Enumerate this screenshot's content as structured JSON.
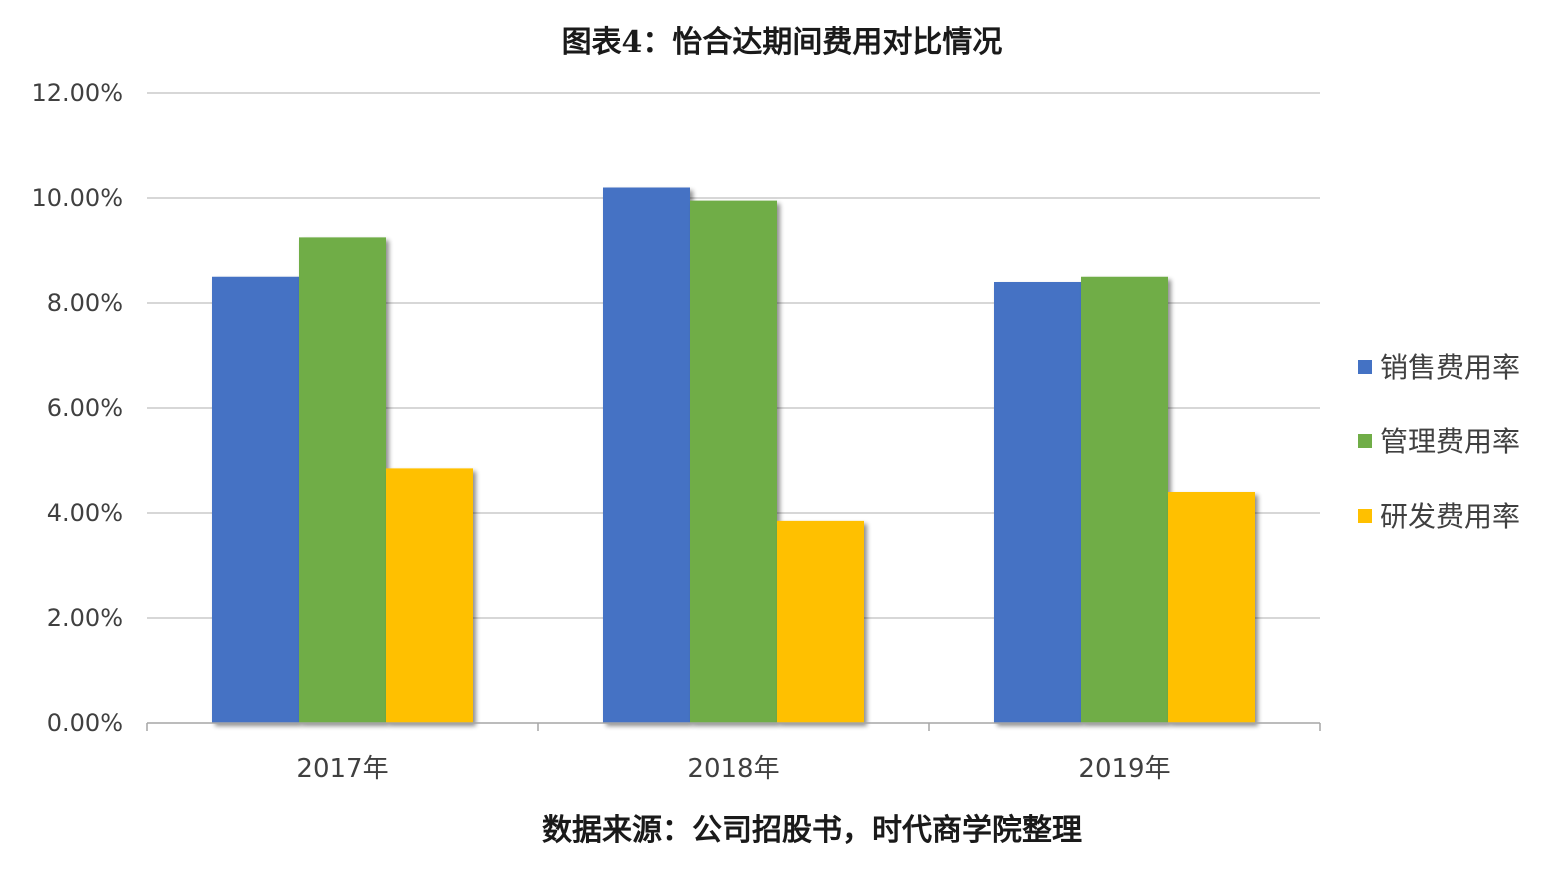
{
  "chart_data": {
    "type": "bar",
    "title": "图表4：怡合达期间费用对比情况",
    "source_note": "数据来源：公司招股书，时代商学院整理",
    "categories": [
      "2017年",
      "2018年",
      "2019年"
    ],
    "series": [
      {
        "name": "销售费用率",
        "color": "#4472C4",
        "values": [
          8.5,
          10.2,
          8.4
        ]
      },
      {
        "name": "管理费用率",
        "color": "#70AD47",
        "values": [
          9.25,
          9.95,
          8.5
        ]
      },
      {
        "name": "研发费用率",
        "color": "#FFC000",
        "values": [
          4.85,
          3.85,
          4.4
        ]
      }
    ],
    "ylim": [
      0,
      12
    ],
    "yticks": [
      "0.00%",
      "2.00%",
      "4.00%",
      "6.00%",
      "8.00%",
      "10.00%",
      "12.00%"
    ],
    "ytick_values": [
      0,
      2,
      4,
      6,
      8,
      10,
      12
    ],
    "grid": true,
    "legend_position": "right"
  }
}
